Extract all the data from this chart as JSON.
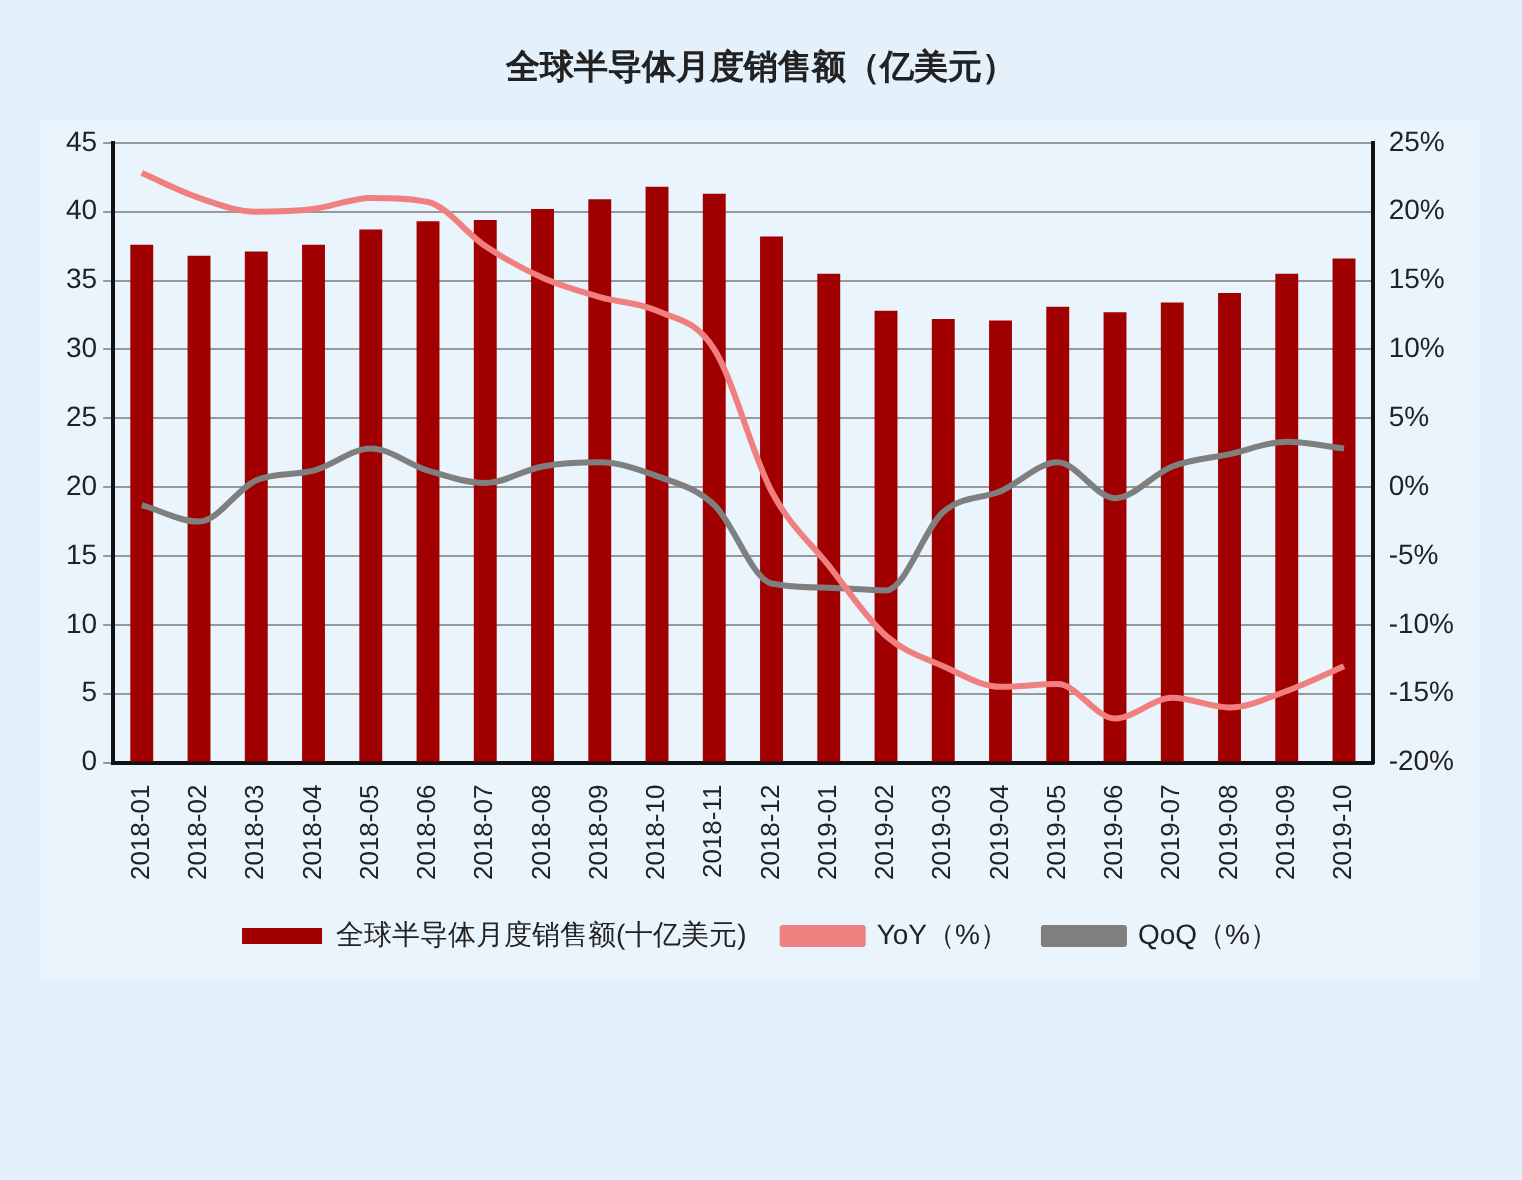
{
  "chart_data": {
    "type": "bar",
    "title": "全球半导体月度销售额（亿美元）",
    "categories": [
      "2018-01",
      "2018-02",
      "2018-03",
      "2018-04",
      "2018-05",
      "2018-06",
      "2018-07",
      "2018-08",
      "2018-09",
      "2018-10",
      "2018-11",
      "2018-12",
      "2019-01",
      "2019-02",
      "2019-03",
      "2019-04",
      "2019-05",
      "2019-06",
      "2019-07",
      "2019-08",
      "2019-09",
      "2019-10"
    ],
    "series": [
      {
        "name": "全球半导体月度销售额(十亿美元)",
        "color": "#a00000",
        "values": [
          37.6,
          36.8,
          37.1,
          37.6,
          38.7,
          39.3,
          39.4,
          40.2,
          40.9,
          41.8,
          41.3,
          38.2,
          35.5,
          32.8,
          32.2,
          32.1,
          33.1,
          32.7,
          33.4,
          34.1,
          35.5,
          36.6
        ]
      },
      {
        "name": "YoY（%）",
        "type": "line",
        "axis": "y2",
        "color": "#f08080",
        "values": [
          22.8,
          21,
          20,
          20.2,
          21,
          20.7,
          17.5,
          15.2,
          13.8,
          12.8,
          10,
          -0.3,
          -5.7,
          -10.8,
          -13,
          -14.5,
          -14.3,
          -16.8,
          -15.3,
          -16,
          -14.8,
          -13
        ]
      },
      {
        "name": "QoQ（%）",
        "type": "line",
        "axis": "y2",
        "color": "#7f7f7f",
        "values": [
          -1.3,
          -2.5,
          0.5,
          1.2,
          2.8,
          1.2,
          0.3,
          1.5,
          1.8,
          0.8,
          -1.3,
          -7,
          -7.3,
          -7.5,
          -1.8,
          -0.3,
          1.8,
          -0.8,
          1.5,
          2.4,
          3.3,
          2.8
        ]
      }
    ],
    "ylim": [
      0,
      45
    ],
    "yticks": [
      0,
      5,
      10,
      15,
      20,
      25,
      30,
      35,
      40,
      45
    ],
    "y2lim": [
      -20,
      25
    ],
    "y2ticks": [
      {
        "value": -20,
        "label": "-20%"
      },
      {
        "value": -15,
        "label": "-15%"
      },
      {
        "value": -10,
        "label": "-10%"
      },
      {
        "value": -5,
        "label": "-5%"
      },
      {
        "value": 0,
        "label": "0%"
      },
      {
        "value": 5,
        "label": "5%"
      },
      {
        "value": 10,
        "label": "10%"
      },
      {
        "value": 15,
        "label": "15%"
      },
      {
        "value": 20,
        "label": "20%"
      },
      {
        "value": 25,
        "label": "25%"
      }
    ],
    "grid": "y",
    "legend": "bottom",
    "marker": "none",
    "line_style": "solid"
  }
}
